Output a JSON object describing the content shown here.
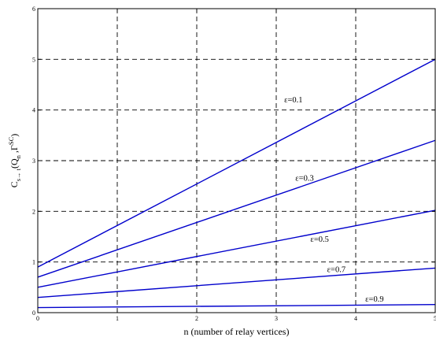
{
  "chart_data": {
    "type": "line",
    "xlabel": "n (number of relay vertices)",
    "ylabel": {
      "base": "C",
      "sub": "s→ t",
      "mid": "(Q",
      "sub2": "n",
      "tail": " ,Γ",
      "sup": "SC",
      "close": ")"
    },
    "xlim": [
      0,
      5
    ],
    "ylim": [
      0,
      6
    ],
    "xticks": [
      "0",
      "1",
      "2",
      "3",
      "4",
      "5"
    ],
    "yticks": [
      "0",
      "1",
      "2",
      "3",
      "4",
      "5",
      "6"
    ],
    "grid": true,
    "grid_style": "dashed",
    "line_color": "#0000cc",
    "series": [
      {
        "name": "ε=0.1",
        "x": [
          0,
          5
        ],
        "y": [
          0.9,
          5.0
        ]
      },
      {
        "name": "ε=0.3",
        "x": [
          0,
          5
        ],
        "y": [
          0.7,
          3.4
        ]
      },
      {
        "name": "ε=0.5",
        "x": [
          0,
          5
        ],
        "y": [
          0.5,
          2.02
        ]
      },
      {
        "name": "ε=0.7",
        "x": [
          0,
          5
        ],
        "y": [
          0.3,
          0.88
        ]
      },
      {
        "name": "ε=0.9",
        "x": [
          0,
          5
        ],
        "y": [
          0.1,
          0.16
        ]
      }
    ]
  }
}
